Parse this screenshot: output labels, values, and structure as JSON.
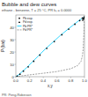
{
  "chart_data": {
    "type": "scatter",
    "title": "Bubble and dew curves",
    "subtitle": "ethane - benzene, T = 25 °C, PR kᵢⱼ = 0.0000",
    "x_label": "x,y",
    "y_label": "P (bar)",
    "annotations": [
      "PR: Peng-Robinson"
    ],
    "xlim": [
      0.0,
      1.0
    ],
    "ylim": [
      0.0,
      50.0
    ],
    "xticks": [
      {
        "value": 0.0,
        "label": "0.0"
      },
      0.2,
      0.4,
      0.6,
      0.8,
      {
        "value": 1.0,
        "label": "1.0"
      }
    ],
    "yticks": [
      0,
      10,
      20,
      30,
      40
    ],
    "grid": false,
    "legend": "upper left",
    "series": [
      {
        "name": "Pb exp.",
        "type": "scatter",
        "marker": "circle",
        "color": "#111111",
        "x": [
          0.02,
          0.06,
          0.11,
          0.18,
          0.26,
          0.35,
          0.45,
          0.56,
          0.67,
          0.77,
          0.86,
          0.93,
          0.97,
          1.0
        ],
        "values": [
          0.5,
          2.0,
          4.5,
          8.0,
          12.5,
          17.5,
          23.0,
          28.5,
          34.0,
          38.5,
          42.5,
          45.5,
          47.5,
          48.3
        ]
      },
      {
        "name": "Pd exp.",
        "type": "scatter",
        "marker": "triangle",
        "color": "#111111",
        "x": [
          0.975,
          0.985,
          0.992,
          0.997,
          1.0
        ],
        "values": [
          46.0,
          47.0,
          47.8,
          48.1,
          48.3
        ]
      },
      {
        "name": "Pb PR*",
        "type": "line",
        "line_style": "solid",
        "color": "#00ccff",
        "x": [
          0.0,
          0.04,
          0.09,
          0.16,
          0.24,
          0.33,
          0.43,
          0.54,
          0.65,
          0.76,
          0.85,
          0.92,
          0.97,
          1.0
        ],
        "values": [
          0.1,
          1.5,
          4.0,
          7.5,
          12.0,
          17.0,
          22.5,
          28.0,
          33.5,
          38.5,
          42.5,
          45.5,
          47.5,
          48.3
        ]
      },
      {
        "name": "Pd PR*",
        "type": "line",
        "line_style": "dashed",
        "color": "#888888",
        "x": [
          0.0,
          0.01,
          0.02,
          0.05,
          0.1,
          0.2,
          0.4,
          0.6,
          0.8,
          0.9,
          0.95,
          0.97,
          0.98,
          0.99,
          0.995,
          1.0
        ],
        "values": [
          0.1,
          0.15,
          0.2,
          0.4,
          0.8,
          1.5,
          2.8,
          4.2,
          6.5,
          9.0,
          12.5,
          17.0,
          22.0,
          33.0,
          42.0,
          48.3
        ]
      }
    ]
  }
}
